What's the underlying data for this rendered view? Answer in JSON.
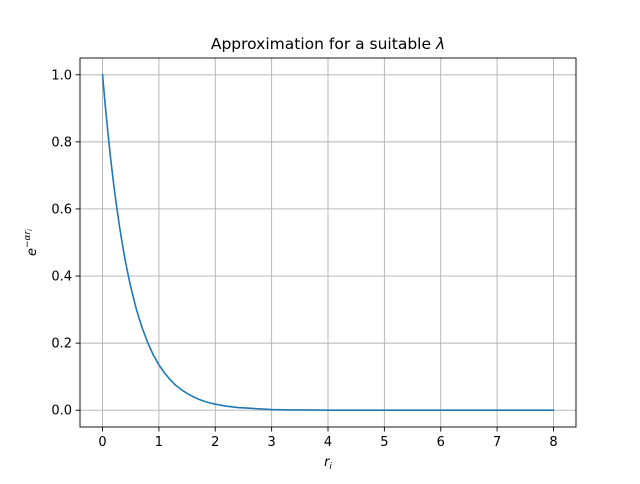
{
  "chart_data": {
    "type": "line",
    "title": {
      "text": "Approximation for a suitable ",
      "symbol": "λ"
    },
    "xlabel": {
      "base": "r",
      "subscript": "i"
    },
    "ylabel": {
      "base": "e",
      "superscript": "−αr",
      "superscript_subscript": "i"
    },
    "xlim": [
      -0.4,
      8.4
    ],
    "ylim": [
      -0.05,
      1.05
    ],
    "x_ticks": [
      0,
      1,
      2,
      3,
      4,
      5,
      6,
      7,
      8
    ],
    "x_tick_labels": [
      "0",
      "1",
      "2",
      "3",
      "4",
      "5",
      "6",
      "7",
      "8"
    ],
    "y_ticks": [
      0.0,
      0.2,
      0.4,
      0.6,
      0.8,
      1.0
    ],
    "y_tick_labels": [
      "0.0",
      "0.2",
      "0.4",
      "0.6",
      "0.8",
      "1.0"
    ],
    "grid": true,
    "series": [
      {
        "color": "#1f77b4",
        "x": [
          0,
          0.05,
          0.1,
          0.15,
          0.2,
          0.25,
          0.3,
          0.35,
          0.4,
          0.45,
          0.5,
          0.6,
          0.7,
          0.8,
          0.9,
          1.0,
          1.1,
          1.2,
          1.3,
          1.4,
          1.5,
          1.6,
          1.7,
          1.8,
          1.9,
          2.0,
          2.2,
          2.4,
          2.6,
          2.8,
          3.0,
          3.3,
          3.6,
          4.0,
          4.5,
          5.0,
          5.5,
          6.0,
          6.5,
          7.0,
          7.5,
          8.0
        ],
        "y": [
          1.0,
          0.905,
          0.819,
          0.741,
          0.67,
          0.607,
          0.549,
          0.497,
          0.449,
          0.407,
          0.368,
          0.301,
          0.247,
          0.202,
          0.165,
          0.135,
          0.111,
          0.091,
          0.074,
          0.061,
          0.05,
          0.041,
          0.033,
          0.027,
          0.022,
          0.018,
          0.012,
          0.008,
          0.006,
          0.004,
          0.002,
          0.001,
          0.001,
          0.0,
          0.0,
          0.0,
          0.0,
          0.0,
          0.0,
          0.0,
          0.0,
          0.0
        ]
      }
    ]
  }
}
